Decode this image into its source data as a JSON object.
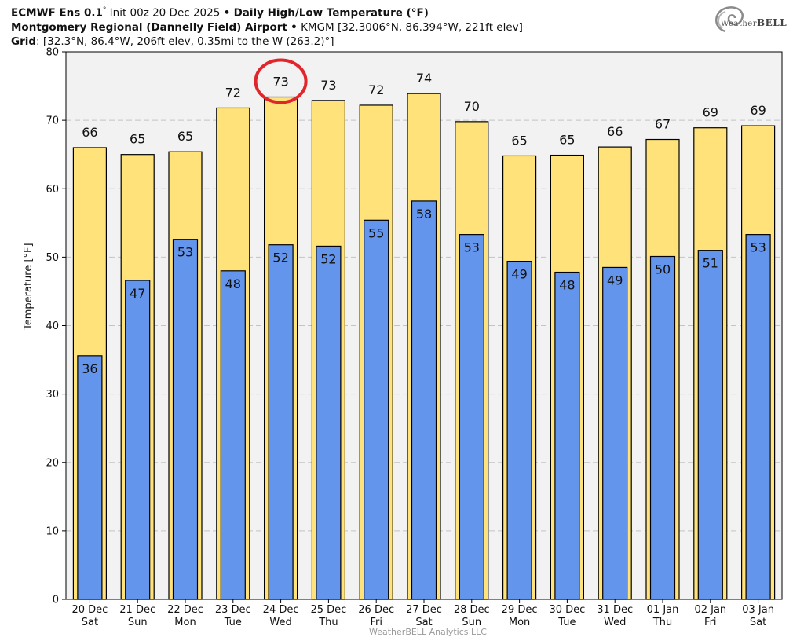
{
  "header": {
    "model": "ECMWF Ens 0.1",
    "model_deg": "°",
    "init": "Init 00z 20 Dec 2025",
    "bullet": "•",
    "product": "Daily High/Low Temperature (°F)",
    "station_name": "Montgomery Regional (Dannelly Field) Airport",
    "station_info": "KMGM [32.3006°N, 86.394°W, 221ft elev]",
    "grid_label": "Grid",
    "grid_info": ": [32.3°N, 86.4°W, 206ft elev, 0.35mi to the W (263.2)°]"
  },
  "logo": {
    "brand_prefix": "Weather",
    "brand_suffix": "BELL"
  },
  "colors": {
    "high_fill": "#FFE27A",
    "low_fill": "#6495ED",
    "plot_bg": "#F2F2F2",
    "highlight_circle": "#E0262B"
  },
  "chart_data": {
    "type": "bar",
    "title": "Daily High/Low Temperature (°F)",
    "ylabel": "Temperature [°F]",
    "ylim": [
      0,
      80
    ],
    "yticks": [
      0,
      10,
      20,
      30,
      40,
      50,
      60,
      70,
      80
    ],
    "grid": true,
    "dates": [
      "20 Dec",
      "21 Dec",
      "22 Dec",
      "23 Dec",
      "24 Dec",
      "25 Dec",
      "26 Dec",
      "27 Dec",
      "28 Dec",
      "29 Dec",
      "30 Dec",
      "31 Dec",
      "01 Jan",
      "02 Jan",
      "03 Jan"
    ],
    "weekdays": [
      "Sat",
      "Sun",
      "Mon",
      "Tue",
      "Wed",
      "Thu",
      "Fri",
      "Sat",
      "Sun",
      "Mon",
      "Tue",
      "Wed",
      "Thu",
      "Fri",
      "Sat"
    ],
    "series": [
      {
        "name": "High",
        "values": [
          66,
          65,
          65.4,
          71.8,
          73.4,
          72.9,
          72.2,
          73.9,
          69.8,
          64.8,
          64.9,
          66.1,
          67.2,
          68.9,
          69.2
        ],
        "labels": [
          "66",
          "65",
          "65",
          "72",
          "73",
          "73",
          "72",
          "74",
          "70",
          "65",
          "65",
          "66",
          "67",
          "69",
          "69"
        ]
      },
      {
        "name": "Low",
        "values": [
          35.6,
          46.6,
          52.6,
          48.0,
          51.8,
          51.6,
          55.4,
          58.2,
          53.3,
          49.4,
          47.8,
          48.5,
          50.1,
          51.0,
          53.3
        ],
        "labels": [
          "36",
          "47",
          "53",
          "48",
          "52",
          "52",
          "55",
          "58",
          "53",
          "49",
          "48",
          "49",
          "50",
          "51",
          "53"
        ]
      }
    ],
    "highlight_index": 4,
    "highlight_label": "73"
  },
  "footer": {
    "credit": "WeatherBELL Analytics LLC"
  }
}
